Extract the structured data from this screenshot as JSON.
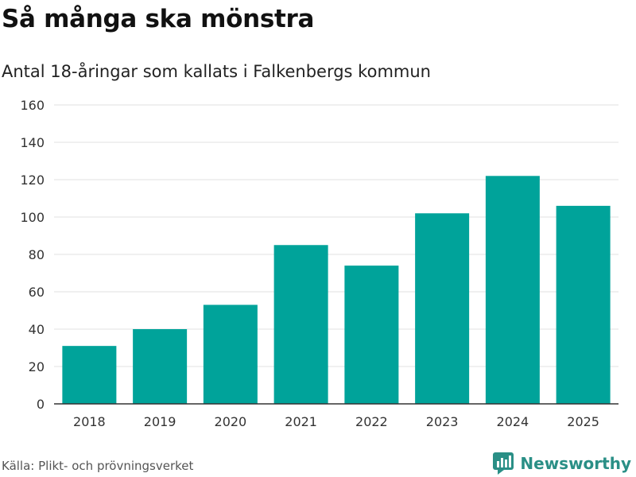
{
  "header": {
    "title": "Så många ska mönstra",
    "subtitle": "Antal 18-åringar som kallats i Falkenbergs kommun"
  },
  "footer": {
    "source": "Källa: Plikt- och prövningsverket",
    "brand": "Newsworthy"
  },
  "colors": {
    "bar": "#00a39a",
    "grid": "#e2e2e2",
    "axis": "#333333",
    "brand": "#2a8f86"
  },
  "chart_data": {
    "type": "bar",
    "title": "Så många ska mönstra",
    "subtitle": "Antal 18-åringar som kallats i Falkenbergs kommun",
    "xlabel": "",
    "ylabel": "",
    "categories": [
      "2018",
      "2019",
      "2020",
      "2021",
      "2022",
      "2023",
      "2024",
      "2025"
    ],
    "values": [
      31,
      40,
      53,
      85,
      74,
      102,
      122,
      106
    ],
    "ylim": [
      0,
      160
    ],
    "yticks": [
      0,
      20,
      40,
      60,
      80,
      100,
      120,
      140,
      160
    ],
    "grid": true,
    "legend": "none"
  }
}
